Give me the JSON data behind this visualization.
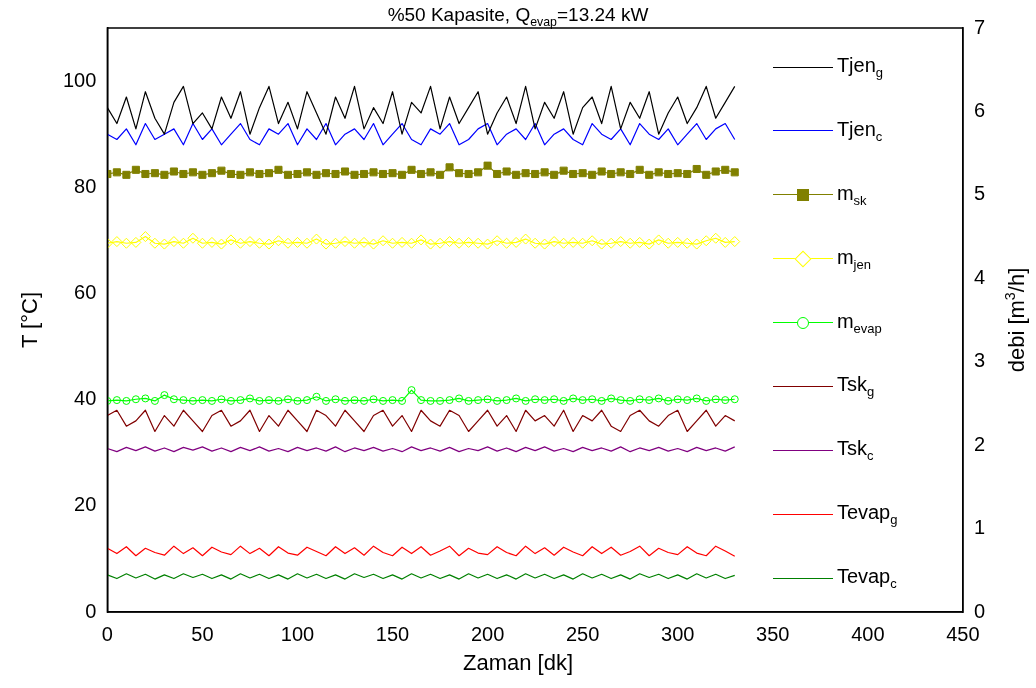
{
  "chart_data": {
    "type": "line",
    "title": "%50 Kapasite, Q$_{evap}$=13.24 kW",
    "xlabel": "Zaman  [dk]",
    "ylabel": "T [°C]",
    "y2label": "debi  [m$^{3}$/h]",
    "xlim": [
      0,
      450
    ],
    "xticks": [
      0,
      50,
      100,
      150,
      200,
      250,
      300,
      350,
      400,
      450
    ],
    "ylim": [
      0,
      110
    ],
    "yticks": [
      0,
      20,
      40,
      60,
      80,
      100
    ],
    "y2lim": [
      0,
      7
    ],
    "y2ticks": [
      0,
      1,
      2,
      3,
      4,
      5,
      6,
      7
    ],
    "grid": false,
    "legend": "right",
    "line_style": "solid",
    "marker": "none",
    "x": [
      0,
      5,
      10,
      15,
      20,
      25,
      30,
      35,
      40,
      45,
      50,
      55,
      60,
      65,
      70,
      75,
      80,
      85,
      90,
      95,
      100,
      105,
      110,
      115,
      120,
      125,
      130,
      135,
      140,
      145,
      150,
      155,
      160,
      165,
      170,
      175,
      180,
      185,
      190,
      195,
      200,
      205,
      210,
      215,
      220,
      225,
      230,
      235,
      240,
      245,
      250,
      255,
      260,
      265,
      270,
      275,
      280,
      285,
      290,
      295,
      300,
      305,
      310,
      315,
      320,
      325,
      330
    ],
    "series": [
      {
        "name": "Tjen$_{g}$",
        "color": "#000000",
        "values": [
          95,
          92,
          97,
          91,
          98,
          93,
          90,
          96,
          99,
          92,
          94,
          91,
          97,
          93,
          98,
          90,
          95,
          99,
          92,
          96,
          91,
          98,
          94,
          90,
          97,
          93,
          99,
          91,
          95,
          92,
          98,
          90,
          96,
          94,
          99,
          91,
          97,
          92,
          95,
          98,
          90,
          94,
          97,
          92,
          99,
          91,
          96,
          93,
          98,
          90,
          95,
          97,
          92,
          99,
          91,
          96,
          93,
          98,
          90,
          94,
          97,
          92,
          95,
          99,
          93,
          96,
          99
        ]
      },
      {
        "name": "Tjen$_{c}$",
        "color": "#0000ff",
        "values": [
          90,
          89,
          91,
          88,
          92,
          89,
          90,
          91,
          88,
          92,
          89,
          91,
          88,
          90,
          92,
          89,
          88,
          91,
          90,
          92,
          88,
          91,
          89,
          92,
          88,
          90,
          91,
          89,
          92,
          88,
          90,
          92,
          89,
          88,
          91,
          90,
          92,
          88,
          89,
          91,
          92,
          88,
          90,
          91,
          89,
          92,
          88,
          90,
          91,
          89,
          88,
          92,
          90,
          89,
          91,
          88,
          92,
          90,
          89,
          91,
          88,
          90,
          92,
          89,
          91,
          92,
          89
        ]
      },
      {
        "name": "m$_{sk}$",
        "color": "#808000",
        "axis": "y2",
        "marker": "square",
        "values": [
          5.25,
          5.27,
          5.24,
          5.3,
          5.25,
          5.26,
          5.24,
          5.28,
          5.25,
          5.27,
          5.24,
          5.26,
          5.29,
          5.25,
          5.24,
          5.27,
          5.25,
          5.26,
          5.3,
          5.24,
          5.25,
          5.27,
          5.24,
          5.26,
          5.25,
          5.28,
          5.24,
          5.25,
          5.27,
          5.25,
          5.26,
          5.24,
          5.3,
          5.25,
          5.27,
          5.24,
          5.33,
          5.26,
          5.25,
          5.27,
          5.35,
          5.25,
          5.28,
          5.24,
          5.26,
          5.25,
          5.27,
          5.24,
          5.29,
          5.25,
          5.26,
          5.24,
          5.28,
          5.25,
          5.27,
          5.25,
          5.3,
          5.24,
          5.27,
          5.25,
          5.26,
          5.25,
          5.31,
          5.24,
          5.28,
          5.3,
          5.27
        ]
      },
      {
        "name": "m$_{jen}$",
        "color": "#ffff00",
        "axis": "y2",
        "marker": "diamond",
        "values": [
          4.42,
          4.44,
          4.42,
          4.43,
          4.5,
          4.42,
          4.41,
          4.44,
          4.42,
          4.48,
          4.42,
          4.43,
          4.41,
          4.46,
          4.42,
          4.44,
          4.42,
          4.41,
          4.45,
          4.42,
          4.43,
          4.42,
          4.47,
          4.41,
          4.42,
          4.44,
          4.42,
          4.43,
          4.41,
          4.45,
          4.42,
          4.43,
          4.42,
          4.46,
          4.41,
          4.42,
          4.44,
          4.42,
          4.43,
          4.42,
          4.41,
          4.45,
          4.42,
          4.43,
          4.47,
          4.42,
          4.41,
          4.44,
          4.42,
          4.43,
          4.42,
          4.45,
          4.41,
          4.42,
          4.44,
          4.42,
          4.43,
          4.41,
          4.46,
          4.42,
          4.43,
          4.42,
          4.41,
          4.45,
          4.48,
          4.43,
          4.44
        ]
      },
      {
        "name": "m$_{evap}$",
        "color": "#00ff00",
        "axis": "y2",
        "marker": "circle",
        "values": [
          2.53,
          2.54,
          2.53,
          2.55,
          2.56,
          2.53,
          2.6,
          2.55,
          2.54,
          2.53,
          2.54,
          2.53,
          2.55,
          2.53,
          2.54,
          2.56,
          2.53,
          2.54,
          2.53,
          2.55,
          2.53,
          2.54,
          2.58,
          2.53,
          2.55,
          2.53,
          2.54,
          2.53,
          2.55,
          2.53,
          2.54,
          2.53,
          2.66,
          2.54,
          2.53,
          2.53,
          2.54,
          2.56,
          2.53,
          2.54,
          2.55,
          2.53,
          2.54,
          2.56,
          2.53,
          2.55,
          2.54,
          2.55,
          2.53,
          2.56,
          2.54,
          2.55,
          2.53,
          2.56,
          2.54,
          2.53,
          2.55,
          2.54,
          2.56,
          2.53,
          2.55,
          2.54,
          2.56,
          2.53,
          2.55,
          2.54,
          2.55
        ]
      },
      {
        "name": "Tsk$_{g}$",
        "color": "#800000",
        "values": [
          37,
          38,
          35,
          36,
          38,
          34,
          37,
          35,
          38,
          36,
          34,
          37,
          38,
          35,
          36,
          38,
          34,
          37,
          35,
          38,
          36,
          34,
          38,
          37,
          35,
          38,
          36,
          34,
          37,
          38,
          35,
          37,
          34,
          38,
          36,
          35,
          38,
          37,
          34,
          36,
          38,
          35,
          37,
          34,
          38,
          36,
          37,
          35,
          38,
          34,
          37,
          36,
          38,
          35,
          34,
          37,
          38,
          36,
          35,
          37,
          38,
          34,
          36,
          38,
          35,
          37,
          36
        ]
      },
      {
        "name": "Tsk$_{c}$",
        "color": "#800080",
        "values": [
          30.8,
          30.2,
          31,
          30.4,
          31.1,
          30.3,
          30.9,
          30.2,
          31,
          30.5,
          31.1,
          30.3,
          30.9,
          30.2,
          31,
          30.4,
          31.1,
          30.3,
          30.8,
          30.2,
          31,
          30.4,
          30.9,
          30.3,
          31.1,
          30.2,
          30.9,
          30.4,
          31,
          30.3,
          30.8,
          30.2,
          31.1,
          30.4,
          30.9,
          30.3,
          31,
          30.2,
          30.8,
          30.4,
          31.1,
          30.3,
          30.9,
          30.2,
          31,
          30.4,
          31.1,
          30.3,
          30.8,
          30.2,
          31,
          30.4,
          30.9,
          30.3,
          31.1,
          30.2,
          30.9,
          30.4,
          31,
          30.3,
          30.8,
          30.2,
          31,
          30.4,
          30.9,
          30.3,
          31.1
        ]
      },
      {
        "name": "Tevap$_{g}$",
        "color": "#ff0000",
        "values": [
          12,
          11,
          12.3,
          10.6,
          12,
          11.2,
          10.7,
          12.4,
          11,
          12.1,
          10.6,
          12.2,
          11.3,
          10.8,
          12.4,
          11,
          12,
          10.6,
          12.3,
          11.1,
          10.7,
          12.2,
          11.4,
          10.6,
          12.3,
          11,
          12.1,
          10.7,
          12.4,
          11.2,
          10.6,
          12.2,
          11,
          12.3,
          10.7,
          11.5,
          12.4,
          10.6,
          12,
          11.1,
          10.8,
          12.3,
          11.2,
          10.6,
          12.4,
          11,
          12.1,
          10.7,
          12.2,
          11.3,
          10.6,
          12.3,
          11,
          12.2,
          10.7,
          11.4,
          12.4,
          10.6,
          12,
          11.2,
          10.8,
          12.3,
          11.1,
          10.6,
          12.4,
          11.5,
          10.5
        ]
      },
      {
        "name": "Tevap$_{c}$",
        "color": "#008000",
        "values": [
          7,
          6.3,
          7.2,
          6.4,
          7.1,
          6.2,
          7,
          6.3,
          7.2,
          6.5,
          7.1,
          6.3,
          7,
          6.2,
          7.2,
          6.4,
          7.1,
          6.3,
          7,
          6.2,
          7.2,
          6.4,
          7.1,
          6.3,
          7,
          6.2,
          7.2,
          6.5,
          7.1,
          6.3,
          7,
          6.2,
          7.2,
          6.4,
          7.1,
          6.3,
          7,
          6.2,
          7.2,
          6.4,
          7.1,
          6.3,
          7,
          6.2,
          7.2,
          6.4,
          7.1,
          6.3,
          7,
          6.2,
          7.2,
          6.4,
          7.1,
          6.3,
          7,
          6.2,
          7.2,
          6.5,
          7.1,
          6.3,
          7,
          6.2,
          7.2,
          6.4,
          7.1,
          6.3,
          6.9
        ]
      }
    ]
  }
}
